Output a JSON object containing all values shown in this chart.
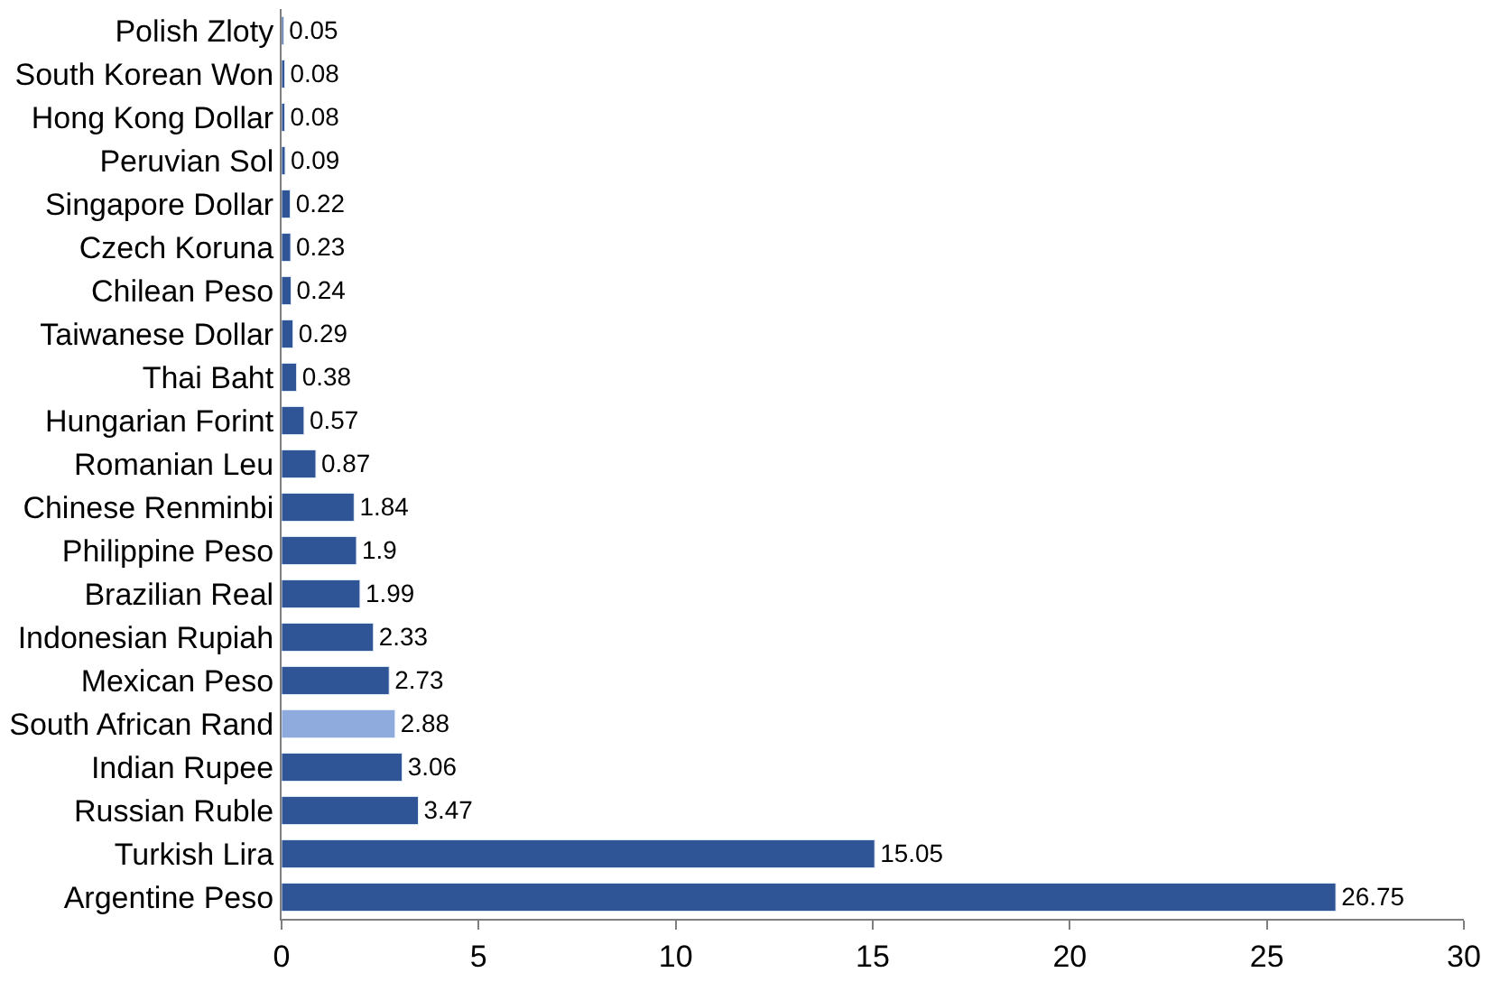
{
  "chart_data": {
    "type": "bar",
    "orientation": "horizontal",
    "categories": [
      "Polish Zloty",
      "South Korean Won",
      "Hong Kong Dollar",
      "Peruvian Sol",
      "Singapore Dollar",
      "Czech Koruna",
      "Chilean Peso",
      "Taiwanese Dollar",
      "Thai Baht",
      "Hungarian Forint",
      "Romanian Leu",
      "Chinese Renminbi",
      "Philippine Peso",
      "Brazilian Real",
      "Indonesian Rupiah",
      "Mexican Peso",
      "South African Rand",
      "Indian Rupee",
      "Russian Ruble",
      "Turkish Lira",
      "Argentine Peso"
    ],
    "values": [
      0.05,
      0.08,
      0.08,
      0.09,
      0.22,
      0.23,
      0.24,
      0.29,
      0.38,
      0.57,
      0.87,
      1.84,
      1.9,
      1.99,
      2.33,
      2.73,
      2.88,
      3.06,
      3.47,
      15.05,
      26.75
    ],
    "colors": [
      "#2f5597",
      "#2f5597",
      "#2f5597",
      "#2f5597",
      "#2f5597",
      "#2f5597",
      "#2f5597",
      "#2f5597",
      "#2f5597",
      "#2f5597",
      "#2f5597",
      "#2f5597",
      "#2f5597",
      "#2f5597",
      "#2f5597",
      "#2f5597",
      "#8faadc",
      "#2f5597",
      "#2f5597",
      "#2f5597",
      "#2f5597"
    ],
    "xlim": [
      0,
      30
    ],
    "xticks": [
      0,
      5,
      10,
      15,
      20,
      25,
      30
    ],
    "data_labels": true,
    "legend": false
  }
}
